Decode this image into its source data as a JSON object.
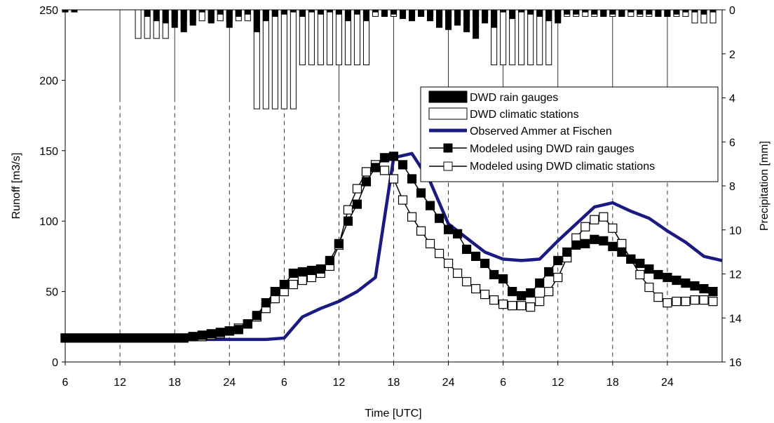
{
  "chart_data": {
    "type": "combo",
    "xlabel": "Time [UTC]",
    "ylabel_left": "Runoff [m3/s]",
    "ylabel_right": "Precipitation [mm]",
    "x_ticks": [
      {
        "x": 0,
        "label": "6"
      },
      {
        "x": 6,
        "label": "12"
      },
      {
        "x": 12,
        "label": "18"
      },
      {
        "x": 18,
        "label": "24"
      },
      {
        "x": 24,
        "label": "6"
      },
      {
        "x": 30,
        "label": "12"
      },
      {
        "x": 36,
        "label": "18"
      },
      {
        "x": 42,
        "label": "24"
      },
      {
        "x": 48,
        "label": "6"
      },
      {
        "x": 54,
        "label": "12"
      },
      {
        "x": 60,
        "label": "18"
      },
      {
        "x": 66,
        "label": "24"
      }
    ],
    "xlim": [
      0,
      72
    ],
    "ylim_left": [
      0,
      250
    ],
    "yticks_left": [
      0,
      50,
      100,
      150,
      200,
      250
    ],
    "ylim_right": [
      16,
      0
    ],
    "yticks_right": [
      0,
      2,
      4,
      6,
      8,
      10,
      12,
      14,
      16
    ],
    "vgrid_solid_hours": [
      6,
      12,
      18,
      24,
      30,
      36,
      42,
      48,
      54,
      60,
      66
    ],
    "legend_position": "right",
    "colors": {
      "observed": "#1a1a80",
      "black": "#000000",
      "white": "#ffffff"
    },
    "series": [
      {
        "name": "DWD rain gauges",
        "kind": "bar-down",
        "axis": "right",
        "x": [
          0,
          1,
          9,
          10,
          11,
          12,
          13,
          14,
          15,
          16,
          17,
          18,
          19,
          20,
          21,
          22,
          23,
          24,
          25,
          26,
          27,
          28,
          29,
          30,
          31,
          32,
          33,
          34,
          35,
          36,
          37,
          38,
          39,
          40,
          41,
          42,
          43,
          44,
          45,
          46,
          47,
          48,
          49,
          50,
          51,
          52,
          53,
          54,
          55,
          56,
          57,
          58,
          59,
          60,
          61,
          62,
          63,
          64,
          65,
          66,
          67,
          68,
          69,
          70,
          71
        ],
        "values": [
          0.1,
          0.1,
          0.3,
          0.5,
          0.6,
          0.8,
          1.0,
          0.7,
          0.1,
          0.6,
          0.2,
          0.8,
          0.3,
          0.2,
          1.0,
          0.5,
          0.3,
          0.2,
          0.1,
          0.3,
          0.1,
          0.2,
          0.1,
          0.2,
          0.5,
          0.2,
          0.5,
          0.1,
          0.3,
          0.2,
          0.4,
          0.5,
          0.3,
          0.5,
          0.8,
          0.9,
          0.7,
          1.0,
          1.3,
          0.6,
          0.8,
          0.1,
          0.4,
          0.1,
          0.2,
          0.3,
          0.5,
          0.6,
          0.2,
          0.2,
          0.1,
          0.2,
          0.3,
          0.2,
          0.3,
          0.1,
          0.2,
          0.2,
          0.3,
          0.3,
          0.2,
          0.1,
          0.1,
          0.2,
          0.1
        ]
      },
      {
        "name": "DWD climatic stations",
        "kind": "bar-down",
        "axis": "right",
        "x": [
          8,
          9,
          10,
          11,
          12,
          13,
          14,
          15,
          16,
          17,
          18,
          19,
          20,
          21,
          22,
          23,
          24,
          25,
          26,
          27,
          28,
          29,
          30,
          31,
          32,
          33,
          34,
          35,
          36,
          37,
          38,
          39,
          40,
          41,
          42,
          43,
          44,
          45,
          46,
          47,
          48,
          49,
          50,
          51,
          52,
          53,
          54,
          55,
          56,
          57,
          58,
          59,
          60,
          61,
          62,
          63,
          64,
          65,
          66,
          67,
          68,
          69,
          70,
          71
        ],
        "values": [
          1.3,
          1.3,
          1.3,
          1.3,
          0.5,
          0.5,
          0.5,
          0.5,
          0.5,
          0.5,
          0.5,
          0.5,
          0.5,
          4.5,
          4.5,
          4.5,
          4.5,
          4.5,
          2.5,
          2.5,
          2.5,
          2.5,
          2.5,
          2.5,
          2.5,
          2.5,
          0.3,
          0.3,
          0.3,
          0.3,
          0.3,
          0.3,
          0.3,
          0.3,
          0.3,
          0.3,
          0.3,
          0.3,
          0.3,
          2.5,
          2.5,
          2.5,
          2.5,
          2.5,
          2.5,
          2.5,
          0.3,
          0.3,
          0.3,
          0.3,
          0.3,
          0.3,
          0.3,
          0.3,
          0.3,
          0.3,
          0.3,
          0.3,
          0.3,
          0.3,
          0.3,
          0.6,
          0.6,
          0.6
        ]
      },
      {
        "name": "Observed Ammer at Fischen",
        "kind": "line",
        "axis": "left",
        "x": [
          0,
          6,
          12,
          14,
          16,
          18,
          20,
          22,
          24,
          26,
          28,
          30,
          32,
          34,
          36,
          38,
          40,
          42,
          44,
          46,
          48,
          50,
          52,
          54,
          56,
          58,
          60,
          62,
          64,
          66,
          68,
          70,
          72
        ],
        "y": [
          17,
          17,
          16,
          16,
          16,
          16,
          16,
          16,
          17,
          32,
          38,
          43,
          50,
          60,
          145,
          148,
          128,
          98,
          88,
          78,
          73,
          72,
          73,
          86,
          98,
          110,
          113,
          107,
          102,
          93,
          85,
          75,
          72
        ]
      },
      {
        "name": "Modeled using DWD rain gauges",
        "kind": "line-marker-filled",
        "axis": "left",
        "x": [
          0,
          1,
          2,
          3,
          4,
          5,
          6,
          7,
          8,
          9,
          10,
          11,
          12,
          13,
          14,
          15,
          16,
          17,
          18,
          19,
          20,
          21,
          22,
          23,
          24,
          25,
          26,
          27,
          28,
          29,
          30,
          31,
          32,
          33,
          34,
          35,
          36,
          37,
          38,
          39,
          40,
          41,
          42,
          43,
          44,
          45,
          46,
          47,
          48,
          49,
          50,
          51,
          52,
          53,
          54,
          55,
          56,
          57,
          58,
          59,
          60,
          61,
          62,
          63,
          64,
          65,
          66,
          67,
          68,
          69,
          70,
          71
        ],
        "y": [
          17,
          17,
          17,
          17,
          17,
          17,
          17,
          17,
          17,
          17,
          17,
          17,
          17,
          17,
          18,
          19,
          20,
          21,
          22,
          23,
          27,
          33,
          42,
          50,
          55,
          63,
          64,
          65,
          66,
          72,
          84,
          100,
          112,
          128,
          138,
          145,
          146,
          140,
          130,
          120,
          111,
          102,
          94,
          91,
          80,
          75,
          70,
          62,
          59,
          50,
          47,
          49,
          56,
          64,
          72,
          78,
          83,
          84,
          87,
          86,
          82,
          78,
          73,
          70,
          66,
          62,
          60,
          58,
          56,
          54,
          52,
          50
        ]
      },
      {
        "name": "Modeled using DWD climatic stations",
        "kind": "line-marker-open",
        "axis": "left",
        "x": [
          0,
          1,
          2,
          3,
          4,
          5,
          6,
          7,
          8,
          9,
          10,
          11,
          12,
          13,
          14,
          15,
          16,
          17,
          18,
          19,
          20,
          21,
          22,
          23,
          24,
          25,
          26,
          27,
          28,
          29,
          30,
          31,
          32,
          33,
          34,
          35,
          36,
          37,
          38,
          39,
          40,
          41,
          42,
          43,
          44,
          45,
          46,
          47,
          48,
          49,
          50,
          51,
          52,
          53,
          54,
          55,
          56,
          57,
          58,
          59,
          60,
          61,
          62,
          63,
          64,
          65,
          66,
          67,
          68,
          69,
          70,
          71
        ],
        "y": [
          17,
          17,
          17,
          17,
          17,
          17,
          17,
          17,
          17,
          17,
          17,
          17,
          17,
          17,
          18,
          18,
          19,
          20,
          22,
          24,
          27,
          32,
          38,
          45,
          50,
          55,
          58,
          60,
          63,
          68,
          83,
          108,
          123,
          135,
          140,
          136,
          130,
          115,
          103,
          93,
          84,
          77,
          70,
          63,
          57,
          52,
          48,
          44,
          41,
          40,
          40,
          39,
          43,
          50,
          60,
          74,
          88,
          96,
          101,
          103,
          95,
          84,
          73,
          62,
          53,
          46,
          42,
          43,
          43,
          44,
          44,
          43
        ]
      }
    ]
  }
}
